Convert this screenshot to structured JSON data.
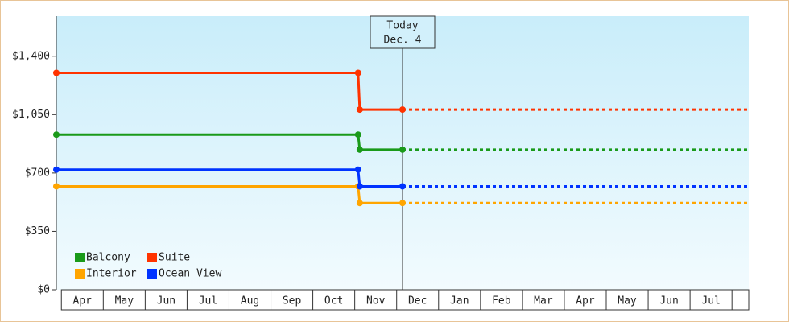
{
  "chart_data": {
    "type": "line",
    "categories": [
      "Apr",
      "May",
      "Jun",
      "Jul",
      "Aug",
      "Sep",
      "Oct",
      "Nov",
      "Dec",
      "Jan",
      "Feb",
      "Mar",
      "Apr",
      "May",
      "Jun",
      "Jul"
    ],
    "x": [
      -0.12,
      7.08,
      7.12,
      8.14
    ],
    "xlim": [
      -0.12,
      16.4
    ],
    "ylim": [
      0,
      1640
    ],
    "yticks": [
      {
        "value": 0,
        "label": "$0"
      },
      {
        "value": 350,
        "label": "$350"
      },
      {
        "value": 700,
        "label": "$700"
      },
      {
        "value": 1050,
        "label": "$1,050"
      },
      {
        "value": 1400,
        "label": "$1,400"
      }
    ],
    "series": [
      {
        "name": "Balcony",
        "color": "#1a9a1a",
        "values": [
          930,
          930,
          840,
          840
        ]
      },
      {
        "name": "Suite",
        "color": "#ff3300",
        "values": [
          1300,
          1300,
          1080,
          1080
        ]
      },
      {
        "name": "Interior",
        "color": "#ffa500",
        "values": [
          620,
          620,
          520,
          520
        ]
      },
      {
        "name": "Ocean View",
        "color": "#0033ff",
        "values": [
          720,
          720,
          620,
          620
        ]
      }
    ],
    "annotation": {
      "x": 8.14,
      "lines": [
        "Today",
        "Dec. 4"
      ]
    },
    "legend": "bottom-left"
  }
}
